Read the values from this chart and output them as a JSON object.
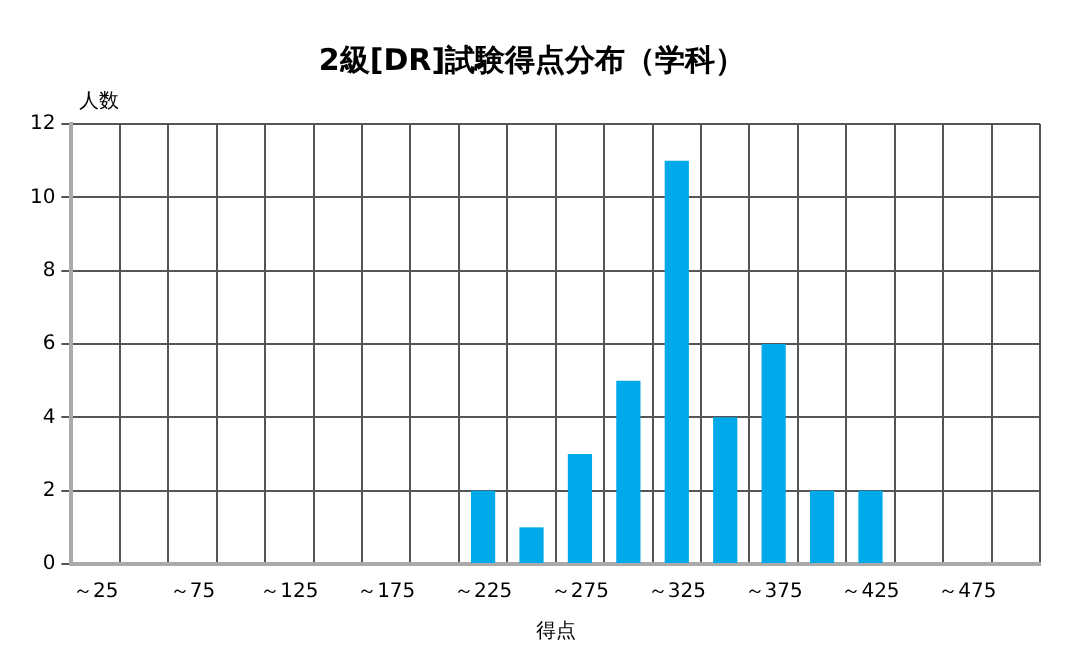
{
  "chart_data": {
    "type": "bar",
    "title": "2級[DR]試験得点分布（学科）",
    "xlabel": "得点",
    "ylabel": "人数",
    "categories": [
      "～25",
      null,
      "～75",
      null,
      "～125",
      null,
      "～175",
      null,
      "～225",
      null,
      "～275",
      null,
      "～325",
      null,
      "～375",
      null,
      "～425",
      null,
      "～475",
      null
    ],
    "values": [
      0,
      0,
      0,
      0,
      0,
      0,
      0,
      0,
      2,
      1,
      3,
      5,
      11,
      4,
      6,
      2,
      2,
      0,
      0,
      0
    ],
    "color": "#00aaea",
    "ylim": [
      0,
      12
    ],
    "yticks": [
      0,
      2,
      4,
      6,
      8,
      10,
      12
    ],
    "grid": true,
    "legend": false
  }
}
